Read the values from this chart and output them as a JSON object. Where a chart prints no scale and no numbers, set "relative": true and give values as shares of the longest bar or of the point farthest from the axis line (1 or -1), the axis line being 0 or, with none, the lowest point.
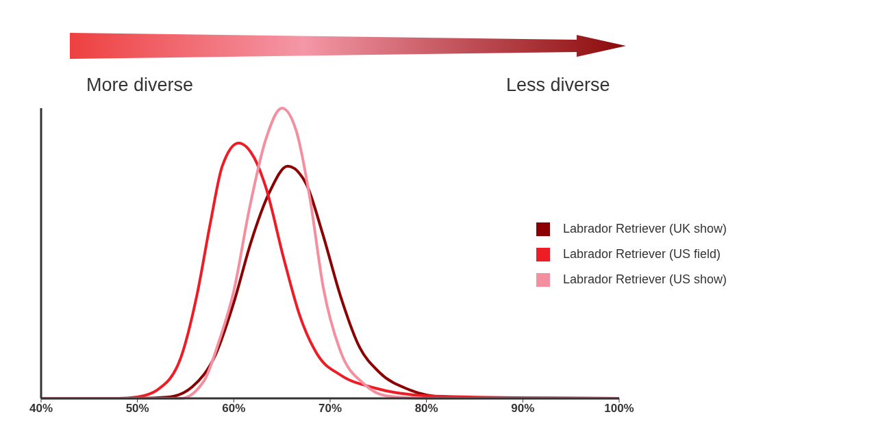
{
  "chart_data": {
    "type": "line",
    "relative": true,
    "legend": "right",
    "annotations": [
      "More diverse",
      "Less diverse"
    ],
    "xlim": [
      40,
      100
    ],
    "xticks": [
      {
        "value": 40,
        "label": "40%"
      },
      {
        "value": 50,
        "label": "50%"
      },
      {
        "value": 60,
        "label": "60%"
      },
      {
        "value": 70,
        "label": "70%"
      },
      {
        "value": 80,
        "label": "80%"
      },
      {
        "value": 90,
        "label": "90%"
      },
      {
        "value": 100,
        "label": "100%"
      }
    ],
    "series": [
      {
        "name": "Labrador Retriever (UK show)",
        "color": "#8b0000",
        "x": [
          40,
          50,
          53.3,
          55.7,
          58.1,
          60,
          61.8,
          63.7,
          65.6,
          67.5,
          69.2,
          71.1,
          73,
          75.1,
          78.2,
          81.8,
          90,
          100
        ],
        "values": [
          0,
          0,
          0.005,
          0.04,
          0.15,
          0.33,
          0.54,
          0.71,
          0.8,
          0.74,
          0.57,
          0.35,
          0.18,
          0.09,
          0.03,
          0.005,
          0.001,
          0
        ]
      },
      {
        "name": "Labrador Retriever (US field)",
        "color": "#ee1c25",
        "x": [
          40,
          48,
          50,
          52.1,
          54.5,
          56.2,
          57.6,
          58.8,
          60.5,
          62.1,
          63.3,
          65.2,
          66.8,
          68.7,
          71.1,
          74.6,
          80,
          90,
          100
        ],
        "values": [
          0,
          0,
          0.005,
          0.03,
          0.14,
          0.36,
          0.61,
          0.8,
          0.88,
          0.83,
          0.73,
          0.48,
          0.29,
          0.15,
          0.08,
          0.036,
          0.009,
          0.002,
          0
        ]
      },
      {
        "name": "Labrador Retriever (US show)",
        "color": "#f48fa0",
        "x": [
          40,
          54.5,
          56.9,
          58.5,
          60,
          61.6,
          63.3,
          65,
          66.5,
          67.9,
          69.3,
          71.1,
          73.5,
          75.8,
          80,
          100
        ],
        "values": [
          0,
          0,
          0.06,
          0.2,
          0.37,
          0.65,
          0.89,
          1,
          0.92,
          0.69,
          0.38,
          0.16,
          0.05,
          0.009,
          0,
          0
        ]
      }
    ]
  }
}
